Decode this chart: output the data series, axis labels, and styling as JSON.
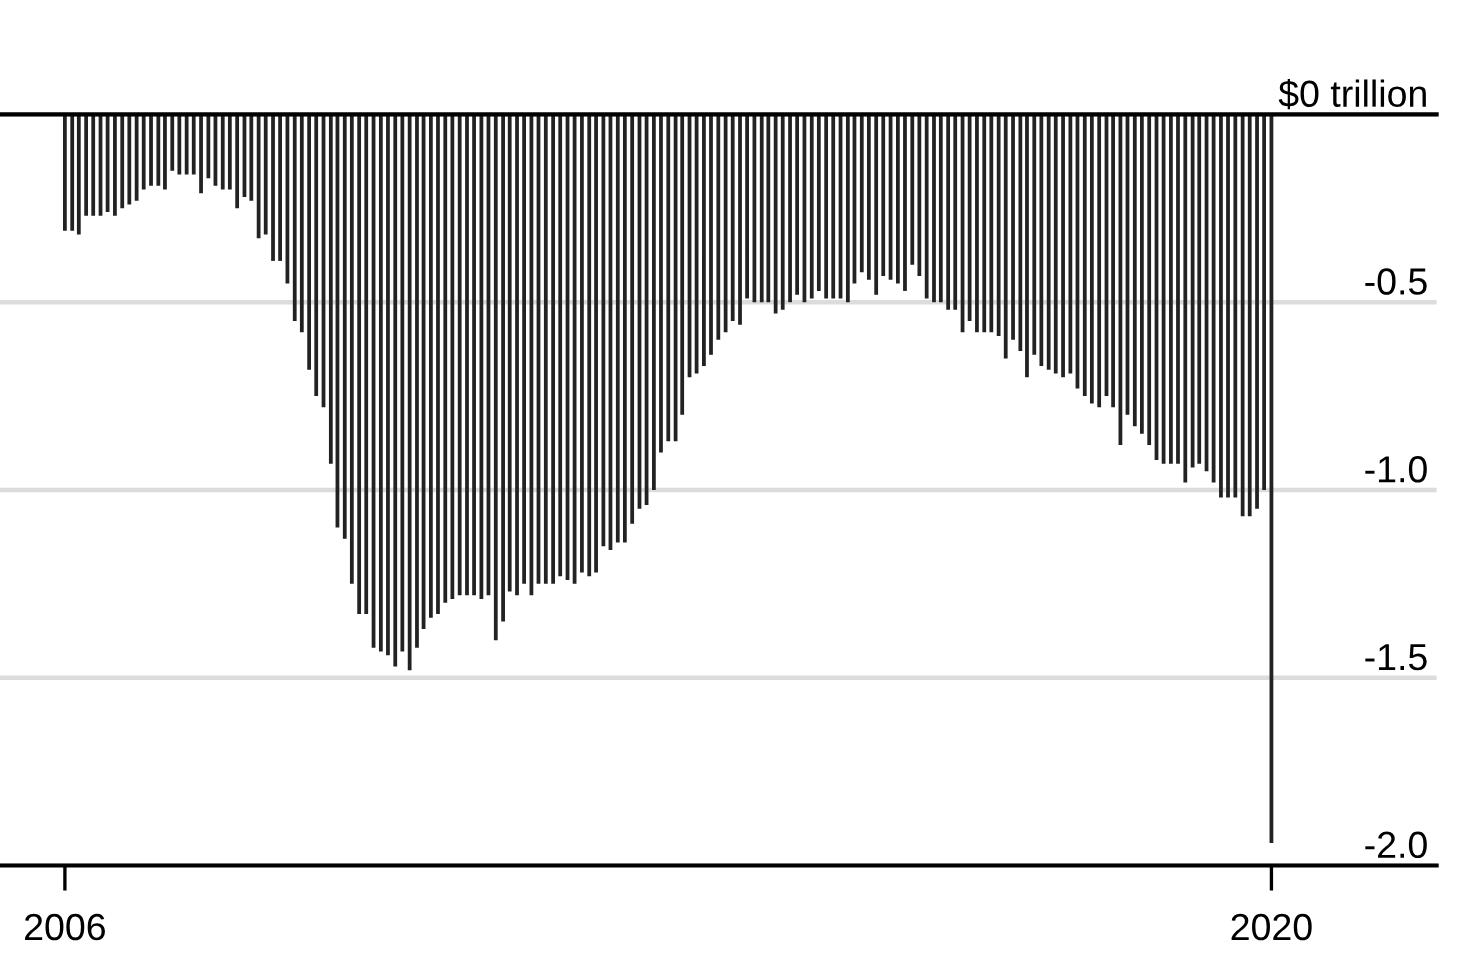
{
  "chart_data": {
    "type": "bar",
    "x": [
      "2006-01",
      "2006-02",
      "2006-03",
      "2006-04",
      "2006-05",
      "2006-06",
      "2006-07",
      "2006-08",
      "2006-09",
      "2006-10",
      "2006-11",
      "2006-12",
      "2007-01",
      "2007-02",
      "2007-03",
      "2007-04",
      "2007-05",
      "2007-06",
      "2007-07",
      "2007-08",
      "2007-09",
      "2007-10",
      "2007-11",
      "2007-12",
      "2008-01",
      "2008-02",
      "2008-03",
      "2008-04",
      "2008-05",
      "2008-06",
      "2008-07",
      "2008-08",
      "2008-09",
      "2008-10",
      "2008-11",
      "2008-12",
      "2009-01",
      "2009-02",
      "2009-03",
      "2009-04",
      "2009-05",
      "2009-06",
      "2009-07",
      "2009-08",
      "2009-09",
      "2009-10",
      "2009-11",
      "2009-12",
      "2010-01",
      "2010-02",
      "2010-03",
      "2010-04",
      "2010-05",
      "2010-06",
      "2010-07",
      "2010-08",
      "2010-09",
      "2010-10",
      "2010-11",
      "2010-12",
      "2011-01",
      "2011-02",
      "2011-03",
      "2011-04",
      "2011-05",
      "2011-06",
      "2011-07",
      "2011-08",
      "2011-09",
      "2011-10",
      "2011-11",
      "2011-12",
      "2012-01",
      "2012-02",
      "2012-03",
      "2012-04",
      "2012-05",
      "2012-06",
      "2012-07",
      "2012-08",
      "2012-09",
      "2012-10",
      "2012-11",
      "2012-12",
      "2013-01",
      "2013-02",
      "2013-03",
      "2013-04",
      "2013-05",
      "2013-06",
      "2013-07",
      "2013-08",
      "2013-09",
      "2013-10",
      "2013-11",
      "2013-12",
      "2014-01",
      "2014-02",
      "2014-03",
      "2014-04",
      "2014-05",
      "2014-06",
      "2014-07",
      "2014-08",
      "2014-09",
      "2014-10",
      "2014-11",
      "2014-12",
      "2015-01",
      "2015-02",
      "2015-03",
      "2015-04",
      "2015-05",
      "2015-06",
      "2015-07",
      "2015-08",
      "2015-09",
      "2015-10",
      "2015-11",
      "2015-12",
      "2016-01",
      "2016-02",
      "2016-03",
      "2016-04",
      "2016-05",
      "2016-06",
      "2016-07",
      "2016-08",
      "2016-09",
      "2016-10",
      "2016-11",
      "2016-12",
      "2017-01",
      "2017-02",
      "2017-03",
      "2017-04",
      "2017-05",
      "2017-06",
      "2017-07",
      "2017-08",
      "2017-09",
      "2017-10",
      "2017-11",
      "2017-12",
      "2018-01",
      "2018-02",
      "2018-03",
      "2018-04",
      "2018-05",
      "2018-06",
      "2018-07",
      "2018-08",
      "2018-09",
      "2018-10",
      "2018-11",
      "2018-12",
      "2019-01",
      "2019-02",
      "2019-03",
      "2019-04",
      "2019-05",
      "2019-06",
      "2019-07",
      "2019-08",
      "2019-09",
      "2019-10",
      "2019-11",
      "2019-12",
      "2020-01"
    ],
    "values": [
      -0.31,
      -0.31,
      -0.32,
      -0.27,
      -0.27,
      -0.27,
      -0.26,
      -0.27,
      -0.25,
      -0.24,
      -0.23,
      -0.2,
      -0.19,
      -0.19,
      -0.2,
      -0.15,
      -0.16,
      -0.16,
      -0.16,
      -0.21,
      -0.17,
      -0.19,
      -0.2,
      -0.2,
      -0.25,
      -0.22,
      -0.23,
      -0.33,
      -0.32,
      -0.39,
      -0.39,
      -0.45,
      -0.55,
      -0.58,
      -0.68,
      -0.75,
      -0.78,
      -0.93,
      -1.1,
      -1.13,
      -1.25,
      -1.33,
      -1.33,
      -1.42,
      -1.43,
      -1.44,
      -1.47,
      -1.43,
      -1.48,
      -1.42,
      -1.37,
      -1.34,
      -1.33,
      -1.3,
      -1.29,
      -1.28,
      -1.28,
      -1.28,
      -1.29,
      -1.28,
      -1.4,
      -1.35,
      -1.27,
      -1.28,
      -1.25,
      -1.28,
      -1.25,
      -1.25,
      -1.25,
      -1.23,
      -1.24,
      -1.25,
      -1.22,
      -1.23,
      -1.22,
      -1.15,
      -1.16,
      -1.14,
      -1.14,
      -1.09,
      -1.05,
      -1.04,
      -1.0,
      -0.9,
      -0.87,
      -0.87,
      -0.8,
      -0.7,
      -0.69,
      -0.67,
      -0.64,
      -0.6,
      -0.58,
      -0.55,
      -0.56,
      -0.49,
      -0.5,
      -0.5,
      -0.5,
      -0.53,
      -0.52,
      -0.5,
      -0.48,
      -0.5,
      -0.49,
      -0.47,
      -0.49,
      -0.49,
      -0.49,
      -0.5,
      -0.45,
      -0.42,
      -0.44,
      -0.48,
      -0.43,
      -0.44,
      -0.45,
      -0.47,
      -0.4,
      -0.43,
      -0.49,
      -0.5,
      -0.5,
      -0.52,
      -0.52,
      -0.58,
      -0.55,
      -0.58,
      -0.58,
      -0.58,
      -0.59,
      -0.65,
      -0.6,
      -0.63,
      -0.7,
      -0.64,
      -0.67,
      -0.68,
      -0.69,
      -0.7,
      -0.69,
      -0.73,
      -0.75,
      -0.77,
      -0.78,
      -0.75,
      -0.78,
      -0.88,
      -0.8,
      -0.83,
      -0.85,
      -0.88,
      -0.92,
      -0.93,
      -0.93,
      -0.93,
      -0.98,
      -0.94,
      -0.93,
      -0.95,
      -0.98,
      -1.02,
      -1.02,
      -1.02,
      -1.07,
      -1.07,
      -1.05,
      -1.0,
      -1.94
    ],
    "color": "#222222",
    "xlim": [
      "2005-04",
      "2021-12"
    ],
    "xticks": [
      "2006",
      "2020"
    ],
    "ylim": [
      -2.0,
      0
    ],
    "yticks": [
      {
        "value": 0,
        "label": "$0 trillion"
      },
      {
        "value": -0.5,
        "label": "-0.5"
      },
      {
        "value": -1.0,
        "label": "-1.0"
      },
      {
        "value": -1.5,
        "label": "-1.5"
      },
      {
        "value": -2.0,
        "label": "-2.0"
      }
    ],
    "grid": "y"
  }
}
